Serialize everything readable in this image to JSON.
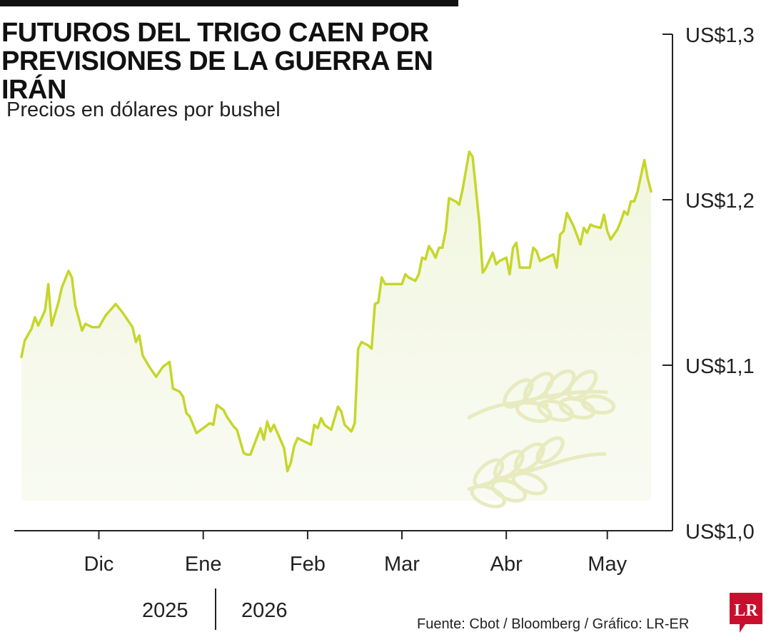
{
  "header": {
    "title_line1": "FUTUROS DEL TRIGO CAEN POR",
    "title_line2": "PREVISIONES DE LA GUERRA EN IRÁN",
    "subtitle": "Precios en dólares por bushel"
  },
  "footer": {
    "year_left": "2025",
    "year_right": "2026",
    "source": "Fuente: Cbot / Bloomberg / Gráfico: LR-ER",
    "logo_text": "LR"
  },
  "colors": {
    "line": "#c6d62a",
    "fill": "#f4f8e8",
    "axis": "#222222",
    "wheat": "#e7ebbf",
    "logo": "#c8102e"
  },
  "chart_data": {
    "type": "area",
    "title": "FUTUROS DEL TRIGO CAEN POR PREVISIONES DE LA GUERRA EN IRÁN",
    "ylabel": "Precios en dólares por bushel",
    "ylim": [
      1.0,
      1.3
    ],
    "y_ticks": [
      1.0,
      1.1,
      1.2,
      1.3
    ],
    "y_tick_labels": [
      "US$1,0",
      "US$1,1",
      "US$1,2",
      "US$1,3"
    ],
    "x_tick_labels": [
      "Dic",
      "Ene",
      "Feb",
      "Mar",
      "Abr",
      "May"
    ],
    "x_tick_dates": [
      "2025-12-01",
      "2026-01-01",
      "2026-02-01",
      "2026-03-01",
      "2026-04-01",
      "2026-05-01"
    ],
    "x_range": [
      "2025-11-06",
      "2026-05-15"
    ],
    "grid": false,
    "series": [
      {
        "values": [
          [
            "2025-11-08",
            1.105
          ],
          [
            "2025-11-09",
            1.115
          ],
          [
            "2025-11-11",
            1.122
          ],
          [
            "2025-11-12",
            1.129
          ],
          [
            "2025-11-13",
            1.124
          ],
          [
            "2025-11-15",
            1.133
          ],
          [
            "2025-11-16",
            1.149
          ],
          [
            "2025-11-17",
            1.124
          ],
          [
            "2025-11-19",
            1.138
          ],
          [
            "2025-11-20",
            1.147
          ],
          [
            "2025-11-22",
            1.157
          ],
          [
            "2025-11-23",
            1.153
          ],
          [
            "2025-11-24",
            1.136
          ],
          [
            "2025-11-26",
            1.121
          ],
          [
            "2025-11-27",
            1.125
          ],
          [
            "2025-11-29",
            1.123
          ],
          [
            "2025-11-30",
            1.123
          ],
          [
            "2025-12-01",
            1.123
          ],
          [
            "2025-12-03",
            1.13
          ],
          [
            "2025-12-06",
            1.137
          ],
          [
            "2025-12-08",
            1.132
          ],
          [
            "2025-12-10",
            1.126
          ],
          [
            "2025-12-11",
            1.123
          ],
          [
            "2025-12-12",
            1.114
          ],
          [
            "2025-12-13",
            1.118
          ],
          [
            "2025-12-14",
            1.106
          ],
          [
            "2025-12-16",
            1.099
          ],
          [
            "2025-12-18",
            1.093
          ],
          [
            "2025-12-20",
            1.099
          ],
          [
            "2025-12-22",
            1.102
          ],
          [
            "2025-12-23",
            1.086
          ],
          [
            "2025-12-25",
            1.084
          ],
          [
            "2025-12-26",
            1.081
          ],
          [
            "2025-12-27",
            1.071
          ],
          [
            "2025-12-28",
            1.069
          ],
          [
            "2025-12-30",
            1.059
          ],
          [
            "2026-01-01",
            1.062
          ],
          [
            "2026-01-03",
            1.065
          ],
          [
            "2026-01-04",
            1.064
          ],
          [
            "2026-01-05",
            1.076
          ],
          [
            "2026-01-07",
            1.073
          ],
          [
            "2026-01-08",
            1.069
          ],
          [
            "2026-01-10",
            1.063
          ],
          [
            "2026-01-11",
            1.061
          ],
          [
            "2026-01-13",
            1.047
          ],
          [
            "2026-01-14",
            1.046
          ],
          [
            "2026-01-15",
            1.046
          ],
          [
            "2026-01-18",
            1.062
          ],
          [
            "2026-01-19",
            1.055
          ],
          [
            "2026-01-20",
            1.066
          ],
          [
            "2026-01-21",
            1.06
          ],
          [
            "2026-01-22",
            1.064
          ],
          [
            "2026-01-25",
            1.05
          ],
          [
            "2026-01-26",
            1.036
          ],
          [
            "2026-01-27",
            1.041
          ],
          [
            "2026-01-28",
            1.051
          ],
          [
            "2026-01-29",
            1.056
          ],
          [
            "2026-02-02",
            1.052
          ],
          [
            "2026-02-03",
            1.064
          ],
          [
            "2026-02-04",
            1.062
          ],
          [
            "2026-02-05",
            1.068
          ],
          [
            "2026-02-06",
            1.064
          ],
          [
            "2026-02-08",
            1.061
          ],
          [
            "2026-02-10",
            1.075
          ],
          [
            "2026-02-11",
            1.072
          ],
          [
            "2026-02-12",
            1.064
          ],
          [
            "2026-02-14",
            1.06
          ],
          [
            "2026-02-15",
            1.065
          ],
          [
            "2026-02-16",
            1.11
          ],
          [
            "2026-02-17",
            1.114
          ],
          [
            "2026-02-19",
            1.112
          ],
          [
            "2026-02-20",
            1.11
          ],
          [
            "2026-02-21",
            1.137
          ],
          [
            "2026-02-22",
            1.138
          ],
          [
            "2026-02-23",
            1.153
          ],
          [
            "2026-02-24",
            1.149
          ],
          [
            "2026-02-25",
            1.149
          ],
          [
            "2026-02-28",
            1.149
          ],
          [
            "2026-03-01",
            1.149
          ],
          [
            "2026-03-02",
            1.155
          ],
          [
            "2026-03-03",
            1.153
          ],
          [
            "2026-03-05",
            1.151
          ],
          [
            "2026-03-06",
            1.155
          ],
          [
            "2026-03-07",
            1.165
          ],
          [
            "2026-03-08",
            1.164
          ],
          [
            "2026-03-09",
            1.172
          ],
          [
            "2026-03-10",
            1.169
          ],
          [
            "2026-03-11",
            1.165
          ],
          [
            "2026-03-12",
            1.171
          ],
          [
            "2026-03-13",
            1.171
          ],
          [
            "2026-03-14",
            1.181
          ],
          [
            "2026-03-15",
            1.201
          ],
          [
            "2026-03-17",
            1.199
          ],
          [
            "2026-03-18",
            1.197
          ],
          [
            "2026-03-19",
            1.206
          ],
          [
            "2026-03-21",
            1.229
          ],
          [
            "2026-03-22",
            1.226
          ],
          [
            "2026-03-24",
            1.186
          ],
          [
            "2026-03-25",
            1.156
          ],
          [
            "2026-03-26",
            1.159
          ],
          [
            "2026-03-28",
            1.168
          ],
          [
            "2026-03-29",
            1.161
          ],
          [
            "2026-03-30",
            1.163
          ],
          [
            "2026-04-01",
            1.165
          ],
          [
            "2026-04-02",
            1.155
          ],
          [
            "2026-04-03",
            1.171
          ],
          [
            "2026-04-04",
            1.174
          ],
          [
            "2026-04-05",
            1.159
          ],
          [
            "2026-04-07",
            1.159
          ],
          [
            "2026-04-08",
            1.159
          ],
          [
            "2026-04-09",
            1.171
          ],
          [
            "2026-04-10",
            1.169
          ],
          [
            "2026-04-11",
            1.163
          ],
          [
            "2026-04-13",
            1.165
          ],
          [
            "2026-04-15",
            1.167
          ],
          [
            "2026-04-16",
            1.159
          ],
          [
            "2026-04-17",
            1.179
          ],
          [
            "2026-04-18",
            1.181
          ],
          [
            "2026-04-19",
            1.192
          ],
          [
            "2026-04-21",
            1.184
          ],
          [
            "2026-04-23",
            1.173
          ],
          [
            "2026-04-24",
            1.183
          ],
          [
            "2026-04-25",
            1.18
          ],
          [
            "2026-04-26",
            1.185
          ],
          [
            "2026-04-27",
            1.184
          ],
          [
            "2026-04-29",
            1.183
          ],
          [
            "2026-04-30",
            1.191
          ],
          [
            "2026-05-01",
            1.181
          ],
          [
            "2026-05-02",
            1.176
          ],
          [
            "2026-05-04",
            1.182
          ],
          [
            "2026-05-05",
            1.187
          ],
          [
            "2026-05-06",
            1.193
          ],
          [
            "2026-05-07",
            1.191
          ],
          [
            "2026-05-08",
            1.199
          ],
          [
            "2026-05-09",
            1.199
          ],
          [
            "2026-05-10",
            1.205
          ],
          [
            "2026-05-12",
            1.224
          ],
          [
            "2026-05-13",
            1.213
          ],
          [
            "2026-05-14",
            1.205
          ]
        ]
      }
    ]
  }
}
